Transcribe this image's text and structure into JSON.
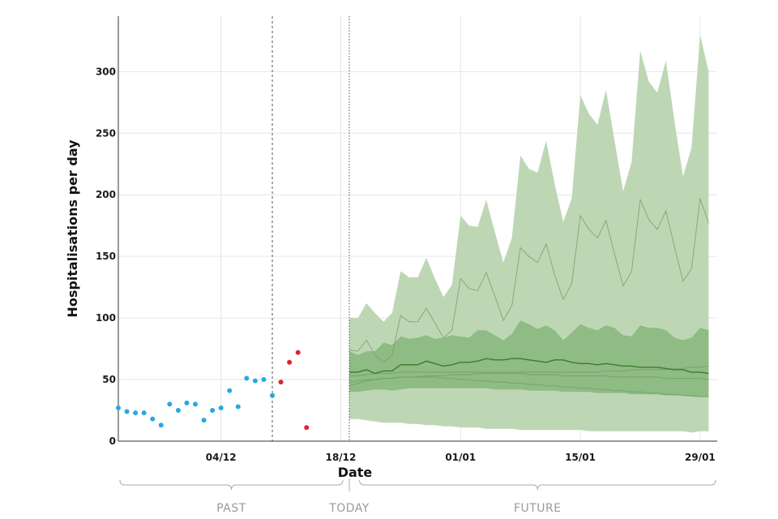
{
  "chart_data": {
    "type": "scatter",
    "xlabel": "Date",
    "ylabel": "Hospitalisations per day",
    "xlim": [
      "2021-11-22",
      "2022-01-31"
    ],
    "ylim": [
      0,
      345
    ],
    "y_ticks": [
      0,
      50,
      100,
      150,
      200,
      250,
      300
    ],
    "x_ticks": [
      {
        "date": "2021-12-04",
        "label": "04/12"
      },
      {
        "date": "2021-12-18",
        "label": "18/12"
      },
      {
        "date": "2022-01-01",
        "label": "01/01"
      },
      {
        "date": "2022-01-15",
        "label": "15/01"
      },
      {
        "date": "2022-01-29",
        "label": "29/01"
      }
    ],
    "grid": true,
    "reference_lines": [
      {
        "date": "2021-12-10",
        "style": "dashed"
      },
      {
        "date": "2021-12-19",
        "style": "dotted"
      }
    ],
    "regions": [
      {
        "label": "PAST",
        "from": "2021-11-22",
        "to": "2021-12-19"
      },
      {
        "label": "TODAY",
        "at": "2021-12-19"
      },
      {
        "label": "FUTURE",
        "from": "2021-12-20",
        "to": "2022-01-31"
      }
    ],
    "observed": {
      "color": "#29a8e0",
      "points": [
        [
          "2021-11-22",
          27
        ],
        [
          "2021-11-23",
          24
        ],
        [
          "2021-11-24",
          23
        ],
        [
          "2021-11-25",
          23
        ],
        [
          "2021-11-26",
          18
        ],
        [
          "2021-11-27",
          13
        ],
        [
          "2021-11-28",
          30
        ],
        [
          "2021-11-29",
          25
        ],
        [
          "2021-11-30",
          31
        ],
        [
          "2021-12-01",
          30
        ],
        [
          "2021-12-02",
          17
        ],
        [
          "2021-12-03",
          25
        ],
        [
          "2021-12-04",
          27
        ],
        [
          "2021-12-05",
          41
        ],
        [
          "2021-12-06",
          28
        ],
        [
          "2021-12-07",
          51
        ],
        [
          "2021-12-08",
          49
        ],
        [
          "2021-12-09",
          50
        ],
        [
          "2021-12-10",
          37
        ]
      ]
    },
    "recent": {
      "color": "#e0262b",
      "points": [
        [
          "2021-12-11",
          48
        ],
        [
          "2021-12-12",
          64
        ],
        [
          "2021-12-13",
          72
        ],
        [
          "2021-12-14",
          11
        ]
      ]
    },
    "forecast": {
      "dates": [
        "2021-12-19",
        "2021-12-20",
        "2021-12-21",
        "2021-12-22",
        "2021-12-23",
        "2021-12-24",
        "2021-12-25",
        "2021-12-26",
        "2021-12-27",
        "2021-12-28",
        "2021-12-29",
        "2021-12-30",
        "2021-12-31",
        "2022-01-01",
        "2022-01-02",
        "2022-01-03",
        "2022-01-04",
        "2022-01-05",
        "2022-01-06",
        "2022-01-07",
        "2022-01-08",
        "2022-01-09",
        "2022-01-10",
        "2022-01-11",
        "2022-01-12",
        "2022-01-13",
        "2022-01-14",
        "2022-01-15",
        "2022-01-16",
        "2022-01-17",
        "2022-01-18",
        "2022-01-19",
        "2022-01-20",
        "2022-01-21",
        "2022-01-22",
        "2022-01-23",
        "2022-01-24",
        "2022-01-25",
        "2022-01-26",
        "2022-01-27",
        "2022-01-28",
        "2022-01-29",
        "2022-01-30"
      ],
      "outer_band": {
        "color": "#bdd7b5",
        "upper": [
          100,
          100,
          112,
          104,
          97,
          104,
          138,
          133,
          133,
          149,
          132,
          117,
          127,
          183,
          175,
          174,
          196,
          170,
          145,
          165,
          232,
          221,
          218,
          244,
          209,
          178,
          197,
          281,
          266,
          257,
          285,
          244,
          203,
          227,
          317,
          292,
          283,
          309,
          260,
          215,
          238,
          330,
          300
        ],
        "lower": [
          18,
          18,
          17,
          16,
          15,
          15,
          15,
          14,
          14,
          13,
          13,
          12,
          12,
          11,
          11,
          11,
          10,
          10,
          10,
          10,
          9,
          9,
          9,
          9,
          9,
          9,
          9,
          9,
          8,
          8,
          8,
          8,
          8,
          8,
          8,
          8,
          8,
          8,
          8,
          8,
          7,
          8,
          8
        ]
      },
      "inner_band": {
        "color": "#8fbb84",
        "upper": [
          73,
          70,
          73,
          73,
          80,
          78,
          85,
          83,
          84,
          86,
          83,
          84,
          86,
          85,
          84,
          90,
          90,
          86,
          82,
          87,
          98,
          95,
          91,
          94,
          90,
          82,
          88,
          95,
          92,
          90,
          94,
          92,
          86,
          85,
          94,
          92,
          92,
          90,
          84,
          82,
          84,
          92,
          90
        ],
        "lower": [
          40,
          40,
          41,
          42,
          42,
          41,
          42,
          43,
          43,
          43,
          43,
          43,
          43,
          43,
          43,
          43,
          43,
          42,
          42,
          42,
          42,
          41,
          41,
          41,
          41,
          40,
          40,
          40,
          40,
          39,
          39,
          39,
          39,
          38,
          38,
          38,
          38,
          37,
          37,
          37,
          36,
          36,
          36
        ]
      },
      "median": {
        "color": "#3a7d2c",
        "values": [
          56,
          56,
          58,
          55,
          57,
          57,
          62,
          62,
          62,
          65,
          63,
          61,
          62,
          64,
          64,
          65,
          67,
          66,
          66,
          67,
          67,
          66,
          65,
          64,
          66,
          66,
          64,
          63,
          63,
          62,
          63,
          62,
          61,
          61,
          60,
          60,
          60,
          59,
          58,
          58,
          56,
          56,
          55
        ]
      },
      "scenario_lines": {
        "color": "#6e9e63",
        "lines": [
          [
            74,
            73,
            82,
            70,
            64,
            70,
            102,
            97,
            97,
            108,
            96,
            84,
            90,
            132,
            124,
            122,
            137,
            118,
            98,
            110,
            157,
            150,
            145,
            160,
            135,
            115,
            128,
            183,
            172,
            165,
            179,
            152,
            126,
            138,
            196,
            180,
            172,
            187,
            158,
            130,
            140,
            197,
            177
          ],
          [
            53,
            53,
            54,
            55,
            55,
            55,
            56,
            56,
            56,
            56,
            56,
            56,
            56,
            56,
            56,
            56,
            56,
            56,
            56,
            56,
            56,
            56,
            56,
            56,
            56,
            56,
            56,
            56,
            56,
            56,
            57,
            57,
            57,
            58,
            58,
            58,
            58,
            58,
            59,
            59,
            60,
            60,
            61
          ],
          [
            48,
            49,
            50,
            50,
            51,
            51,
            52,
            52,
            52,
            53,
            53,
            53,
            54,
            54,
            54,
            55,
            55,
            55,
            55,
            55,
            55,
            54,
            54,
            54,
            54,
            53,
            53,
            53,
            53,
            53,
            53,
            52,
            52,
            52,
            52,
            52,
            52,
            51,
            51,
            51,
            51,
            51,
            50
          ],
          [
            45,
            47,
            49,
            50,
            51,
            51,
            52,
            52,
            52,
            52,
            52,
            51,
            51,
            50,
            50,
            49,
            49,
            48,
            48,
            47,
            47,
            46,
            46,
            45,
            45,
            44,
            44,
            43,
            43,
            42,
            42,
            41,
            41,
            40,
            40,
            39,
            39,
            38,
            38,
            37,
            37,
            36,
            36
          ]
        ]
      }
    }
  }
}
